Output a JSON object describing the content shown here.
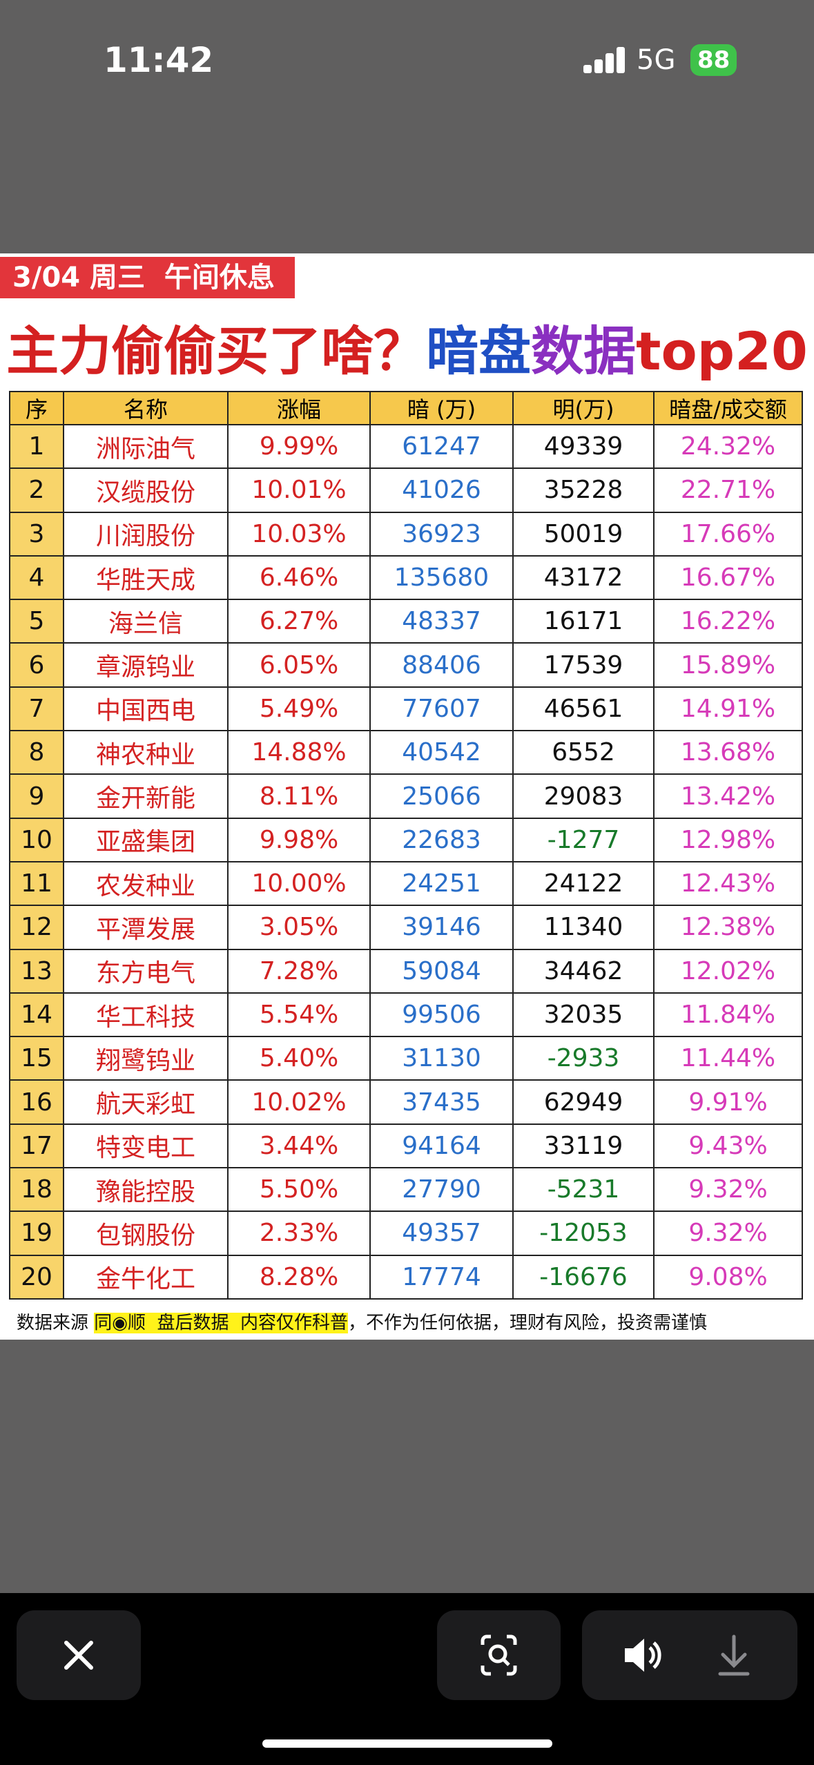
{
  "status_bar": {
    "time": "11:42",
    "network": "5G",
    "battery": "88"
  },
  "header": {
    "tag": "3/04 周三  午间休息",
    "title_parts": [
      "主力偷偷买了啥？",
      "暗盘",
      "数据",
      "top20"
    ]
  },
  "table": {
    "columns": [
      "序",
      "名称",
      "涨幅",
      "暗 (万)",
      "明(万)",
      "暗盘/成交额"
    ],
    "rows": [
      [
        "1",
        "洲际油气",
        "9.99%",
        "61247",
        "49339",
        "24.32%"
      ],
      [
        "2",
        "汉缆股份",
        "10.01%",
        "41026",
        "35228",
        "22.71%"
      ],
      [
        "3",
        "川润股份",
        "10.03%",
        "36923",
        "50019",
        "17.66%"
      ],
      [
        "4",
        "华胜天成",
        "6.46%",
        "135680",
        "43172",
        "16.67%"
      ],
      [
        "5",
        "海兰信",
        "6.27%",
        "48337",
        "16171",
        "16.22%"
      ],
      [
        "6",
        "章源钨业",
        "6.05%",
        "88406",
        "17539",
        "15.89%"
      ],
      [
        "7",
        "中国西电",
        "5.49%",
        "77607",
        "46561",
        "14.91%"
      ],
      [
        "8",
        "神农种业",
        "14.88%",
        "40542",
        "6552",
        "13.68%"
      ],
      [
        "9",
        "金开新能",
        "8.11%",
        "25066",
        "29083",
        "13.42%"
      ],
      [
        "10",
        "亚盛集团",
        "9.98%",
        "22683",
        "-1277",
        "12.98%"
      ],
      [
        "11",
        "农发种业",
        "10.00%",
        "24251",
        "24122",
        "12.43%"
      ],
      [
        "12",
        "平潭发展",
        "3.05%",
        "39146",
        "11340",
        "12.38%"
      ],
      [
        "13",
        "东方电气",
        "7.28%",
        "59084",
        "34462",
        "12.02%"
      ],
      [
        "14",
        "华工科技",
        "5.54%",
        "99506",
        "32035",
        "11.84%"
      ],
      [
        "15",
        "翔鹭钨业",
        "5.40%",
        "31130",
        "-2933",
        "11.44%"
      ],
      [
        "16",
        "航天彩虹",
        "10.02%",
        "37435",
        "62949",
        "9.91%"
      ],
      [
        "17",
        "特变电工",
        "3.44%",
        "94164",
        "33119",
        "9.43%"
      ],
      [
        "18",
        "豫能控股",
        "5.50%",
        "27790",
        "-5231",
        "9.32%"
      ],
      [
        "19",
        "包钢股份",
        "2.33%",
        "49357",
        "-12053",
        "9.32%"
      ],
      [
        "20",
        "金牛化工",
        "8.28%",
        "17774",
        "-16676",
        "9.08%"
      ]
    ]
  },
  "footer": {
    "source_label": "数据来源",
    "highlight": "同◉顺  盘后数据  内容仅作科普",
    "disclaimer": "，不作为任何依据，理财有风险，投资需谨慎"
  }
}
